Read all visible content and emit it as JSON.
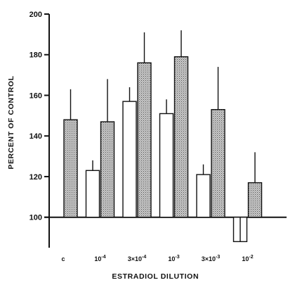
{
  "chart_data": {
    "type": "bar",
    "xlabel": "ESTRADIOL DILUTION",
    "ylabel": "PERCENT OF CONTROL",
    "ylim": [
      85,
      200
    ],
    "yticks": [
      100,
      120,
      140,
      160,
      180,
      200
    ],
    "categories": [
      {
        "id": "c",
        "base": "c",
        "exp": ""
      },
      {
        "id": "1e-4",
        "base": "10",
        "exp": "-4"
      },
      {
        "id": "3e-4",
        "base": "3×10",
        "exp": "-4"
      },
      {
        "id": "1e-3",
        "base": "10",
        "exp": "-3"
      },
      {
        "id": "3e-3",
        "base": "3×10",
        "exp": "-3"
      },
      {
        "id": "1e-2",
        "base": "10",
        "exp": "-2"
      }
    ],
    "series": [
      {
        "fill": "open",
        "values": [
          null,
          123,
          157,
          151,
          121,
          88
        ],
        "errors": [
          null,
          5,
          7,
          7,
          5,
          3
        ]
      },
      {
        "fill": "stippled",
        "values": [
          148,
          147,
          176,
          179,
          153,
          117
        ],
        "errors": [
          15,
          21,
          15,
          13,
          21,
          15
        ]
      }
    ],
    "baseline": 100,
    "grid": false
  },
  "colors": {
    "ink": "#111111",
    "stipple_bg": "#c8c8c8"
  }
}
